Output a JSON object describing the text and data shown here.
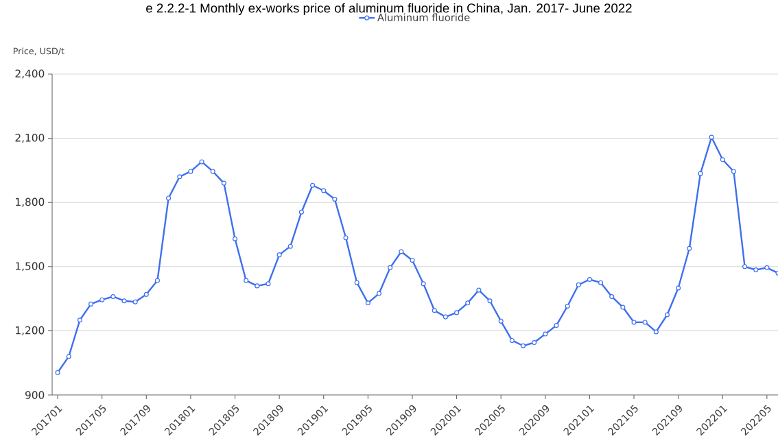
{
  "chart_data": {
    "type": "line",
    "title": "e 2.2.2-1 Monthly ex-works price of aluminum fluoride in China, Jan. 2017- June 2022",
    "ylabel": "Price, USD/t",
    "categories": [
      "201701",
      null,
      null,
      null,
      "201705",
      null,
      null,
      null,
      "201709",
      null,
      null,
      null,
      "201801",
      null,
      null,
      null,
      "201805",
      null,
      null,
      null,
      "201809",
      null,
      null,
      null,
      "201901",
      null,
      null,
      null,
      "201905",
      null,
      null,
      null,
      "201909",
      null,
      null,
      null,
      "202001",
      null,
      null,
      null,
      "202005",
      null,
      null,
      null,
      "202009",
      null,
      null,
      null,
      "202101",
      null,
      null,
      null,
      "202105",
      null,
      null,
      null,
      "202109",
      null,
      null,
      null,
      "202201",
      null,
      null,
      null,
      "202205",
      null
    ],
    "series": [
      {
        "name": "Aluminum fluoride",
        "color": "#3d6ff0",
        "values": [
          1005,
          1080,
          1250,
          1325,
          1345,
          1360,
          1340,
          1335,
          1370,
          1435,
          1820,
          1920,
          1945,
          1990,
          1945,
          1890,
          1630,
          1435,
          1410,
          1420,
          1555,
          1595,
          1755,
          1880,
          1855,
          1815,
          1635,
          1425,
          1330,
          1375,
          1495,
          1570,
          1530,
          1420,
          1295,
          1265,
          1285,
          1330,
          1390,
          1340,
          1245,
          1155,
          1130,
          1145,
          1185,
          1225,
          1315,
          1415,
          1440,
          1425,
          1360,
          1310,
          1240,
          1240,
          1195,
          1275,
          1400,
          1585,
          1935,
          2105,
          2000,
          1945,
          1500,
          1485,
          1495,
          1470
        ]
      }
    ],
    "ylim": [
      900,
      2400
    ],
    "yticks": [
      {
        "value": 900,
        "label": "900"
      },
      {
        "value": 1200,
        "label": "1,200"
      },
      {
        "value": 1500,
        "label": "1,500"
      },
      {
        "value": 1800,
        "label": "1,800"
      },
      {
        "value": 2100,
        "label": "2,100"
      },
      {
        "value": 2400,
        "label": "2,400"
      }
    ],
    "grid": "y",
    "legend": "top",
    "marker": "circle",
    "line_style": "solid"
  }
}
